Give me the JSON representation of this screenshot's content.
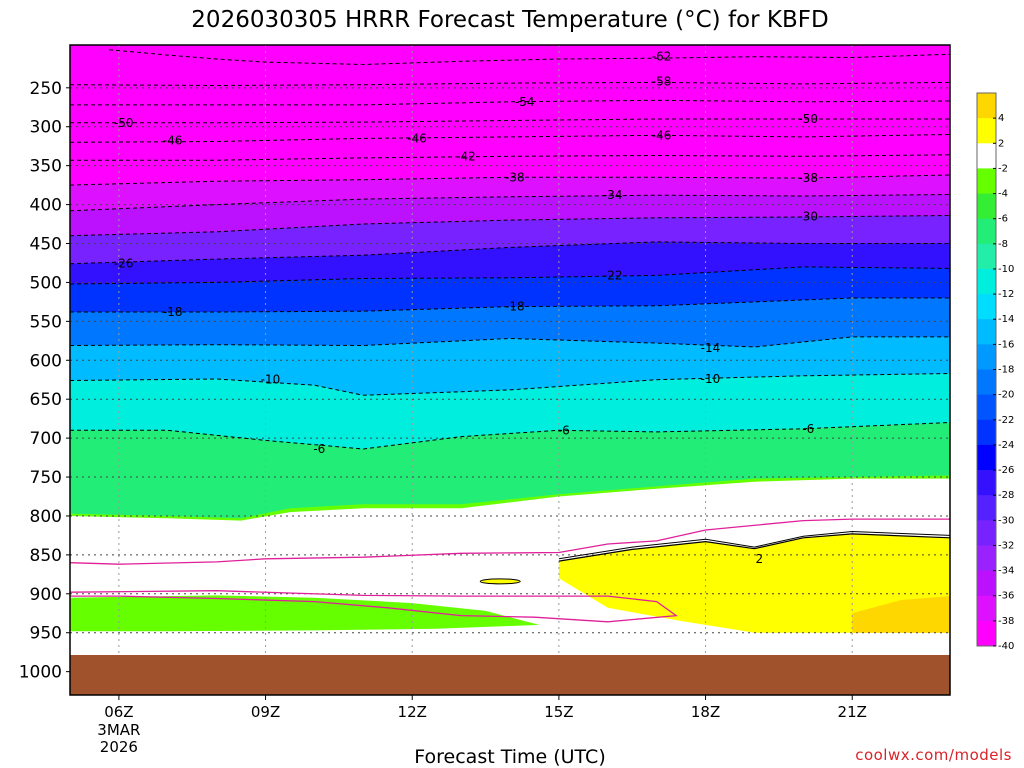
{
  "chart_data": {
    "type": "contour",
    "title": "2026030305 HRRR Forecast Temperature (°C) for KBFD",
    "xlabel": "Forecast Time (UTC)",
    "ylabel": "",
    "credit": "coolwx.com/models",
    "x_range_hours_utc": [
      5,
      23
    ],
    "y_range_hpa": [
      195,
      1030
    ],
    "y_axis": "pressure (hPa), inverted",
    "x_ticks": [
      {
        "hour": 6,
        "label": "06Z",
        "sub": [
          "3MAR",
          "2026"
        ]
      },
      {
        "hour": 9,
        "label": "09Z",
        "sub": []
      },
      {
        "hour": 12,
        "label": "12Z",
        "sub": []
      },
      {
        "hour": 15,
        "label": "15Z",
        "sub": []
      },
      {
        "hour": 18,
        "label": "18Z",
        "sub": []
      },
      {
        "hour": 21,
        "label": "21Z",
        "sub": []
      }
    ],
    "y_ticks": [
      {
        "value": 250,
        "label": "250"
      },
      {
        "value": 300,
        "label": "300"
      },
      {
        "value": 350,
        "label": "350"
      },
      {
        "value": 400,
        "label": "400"
      },
      {
        "value": 450,
        "label": "450"
      },
      {
        "value": 500,
        "label": "500"
      },
      {
        "value": 550,
        "label": "550"
      },
      {
        "value": 600,
        "label": "600"
      },
      {
        "value": 650,
        "label": "650"
      },
      {
        "value": 700,
        "label": "700"
      },
      {
        "value": 750,
        "label": "750"
      },
      {
        "value": 800,
        "label": "800"
      },
      {
        "value": 850,
        "label": "850"
      },
      {
        "value": 900,
        "label": "900"
      },
      {
        "value": 950,
        "label": "950"
      },
      {
        "value": 1000,
        "label": "1000"
      }
    ],
    "ground_level_hpa": 950,
    "ground_color": "#a0522d",
    "colorbar": {
      "labels": [
        "4",
        "2",
        "-2",
        "-4",
        "-6",
        "-8",
        "-10",
        "-12",
        "-14",
        "-16",
        "-18",
        "-20",
        "-22",
        "-24",
        "-26",
        "-28",
        "-30",
        "-32",
        "-34",
        "-36",
        "-38",
        "-40"
      ],
      "bins": [
        {
          "label": "> 4",
          "color": "#ffd700"
        },
        {
          "label": "2 to 4",
          "color": "#ffff00"
        },
        {
          "label": "-2 to 2",
          "color": "#ffffff"
        },
        {
          "label": "-4 to -2",
          "color": "#66ff00"
        },
        {
          "label": "-6 to -4",
          "color": "#33ee33"
        },
        {
          "label": "-8 to -6",
          "color": "#22ee77"
        },
        {
          "label": "-10 to -8",
          "color": "#22eeaa"
        },
        {
          "label": "-12 to -10",
          "color": "#00eedd"
        },
        {
          "label": "-14 to -12",
          "color": "#00ddff"
        },
        {
          "label": "-16 to -14",
          "color": "#00bbff"
        },
        {
          "label": "-18 to -16",
          "color": "#0099ff"
        },
        {
          "label": "-20 to -18",
          "color": "#0077ff"
        },
        {
          "label": "-22 to -20",
          "color": "#0055ff"
        },
        {
          "label": "-24 to -22",
          "color": "#0033ff"
        },
        {
          "label": "-26 to -24",
          "color": "#0000ff"
        },
        {
          "label": "-28 to -26",
          "color": "#3311ff"
        },
        {
          "label": "-30 to -28",
          "color": "#5522ff"
        },
        {
          "label": "-32 to -30",
          "color": "#7722ff"
        },
        {
          "label": "-34 to -32",
          "color": "#9922ff"
        },
        {
          "label": "-36 to -34",
          "color": "#bb11ff"
        },
        {
          "label": "-38 to -36",
          "color": "#dd11ff"
        },
        {
          "label": "< -40",
          "color": "#ff00ff"
        }
      ]
    },
    "isotherms": [
      {
        "label": "-62",
        "value": -62,
        "label_at": [
          {
            "hour": 17.1,
            "hpa": 210
          }
        ],
        "hpa_pts": [
          [
            5.8,
            201
          ],
          [
            7,
            208
          ],
          [
            8,
            213
          ],
          [
            9,
            217
          ],
          [
            11,
            220
          ],
          [
            13,
            216
          ],
          [
            15,
            213
          ],
          [
            17,
            212
          ],
          [
            19,
            210
          ],
          [
            21,
            211
          ],
          [
            23,
            207
          ]
        ]
      },
      {
        "label": "-58",
        "value": -58,
        "label_at": [
          {
            "hour": 17.1,
            "hpa": 242
          }
        ],
        "hpa_pts": [
          [
            5,
            246
          ],
          [
            8,
            247
          ],
          [
            11,
            246
          ],
          [
            14,
            244
          ],
          [
            17,
            243
          ],
          [
            20,
            245
          ],
          [
            23,
            243
          ]
        ]
      },
      {
        "label": "-54",
        "value": -54,
        "label_at": [
          {
            "hour": 14.3,
            "hpa": 268
          }
        ],
        "hpa_pts": [
          [
            5,
            272
          ],
          [
            8,
            272
          ],
          [
            11,
            272
          ],
          [
            14,
            268
          ],
          [
            17,
            266
          ],
          [
            20,
            268
          ],
          [
            23,
            267
          ]
        ]
      },
      {
        "label": "-50",
        "value": -50,
        "label_at": [
          {
            "hour": 6.1,
            "hpa": 295
          },
          {
            "hour": 20.1,
            "hpa": 290
          }
        ],
        "hpa_pts": [
          [
            5,
            295
          ],
          [
            8,
            295
          ],
          [
            11,
            294
          ],
          [
            14,
            292
          ],
          [
            17,
            290
          ],
          [
            20,
            290
          ],
          [
            23,
            290
          ]
        ]
      },
      {
        "label": "-46",
        "value": -46,
        "label_at": [
          {
            "hour": 7.1,
            "hpa": 318
          },
          {
            "hour": 12.1,
            "hpa": 315
          },
          {
            "hour": 17.1,
            "hpa": 311
          }
        ],
        "hpa_pts": [
          [
            5,
            320
          ],
          [
            8,
            319
          ],
          [
            11,
            315
          ],
          [
            14,
            313
          ],
          [
            17,
            311
          ],
          [
            20,
            313
          ],
          [
            23,
            310
          ]
        ]
      },
      {
        "label": "-42",
        "value": -42,
        "label_at": [
          {
            "hour": 13.1,
            "hpa": 338
          }
        ],
        "hpa_pts": [
          [
            5,
            343
          ],
          [
            8,
            343
          ],
          [
            11,
            340
          ],
          [
            14,
            338
          ],
          [
            17,
            337
          ],
          [
            20,
            338
          ],
          [
            23,
            336
          ]
        ]
      },
      {
        "label": "-38",
        "value": -38,
        "label_at": [
          {
            "hour": 14.1,
            "hpa": 365
          },
          {
            "hour": 20.1,
            "hpa": 366
          }
        ],
        "hpa_pts": [
          [
            5,
            375
          ],
          [
            8,
            370
          ],
          [
            11,
            368
          ],
          [
            14,
            365
          ],
          [
            17,
            365
          ],
          [
            20,
            366
          ],
          [
            23,
            362
          ]
        ]
      },
      {
        "label": "-34",
        "value": -34,
        "label_at": [
          {
            "hour": 16.1,
            "hpa": 388
          }
        ],
        "hpa_pts": [
          [
            5,
            408
          ],
          [
            8,
            400
          ],
          [
            11,
            393
          ],
          [
            14,
            390
          ],
          [
            17,
            388
          ],
          [
            20,
            389
          ],
          [
            23,
            387
          ]
        ]
      },
      {
        "label": "-30",
        "value": -30,
        "label_at": [
          {
            "hour": 20.1,
            "hpa": 415
          }
        ],
        "hpa_pts": [
          [
            5,
            440
          ],
          [
            8,
            435
          ],
          [
            11,
            425
          ],
          [
            14,
            420
          ],
          [
            17,
            417
          ],
          [
            20,
            416
          ],
          [
            23,
            414
          ]
        ]
      },
      {
        "label": "-26",
        "value": -26,
        "label_at": [
          {
            "hour": 6.1,
            "hpa": 476
          }
        ],
        "hpa_pts": [
          [
            5,
            476
          ],
          [
            8,
            470
          ],
          [
            11,
            465
          ],
          [
            14,
            455
          ],
          [
            17,
            448
          ],
          [
            20,
            450
          ],
          [
            23,
            450
          ]
        ]
      },
      {
        "label": "-22",
        "value": -22,
        "label_at": [
          {
            "hour": 16.1,
            "hpa": 491
          }
        ],
        "hpa_pts": [
          [
            5,
            502
          ],
          [
            8,
            500
          ],
          [
            11,
            495
          ],
          [
            14,
            494
          ],
          [
            17,
            491
          ],
          [
            20,
            480
          ],
          [
            23,
            482
          ]
        ]
      },
      {
        "label": "-18",
        "value": -18,
        "label_at": [
          {
            "hour": 7.1,
            "hpa": 538
          },
          {
            "hour": 14.1,
            "hpa": 531
          }
        ],
        "hpa_pts": [
          [
            5,
            538
          ],
          [
            8,
            538
          ],
          [
            11,
            537
          ],
          [
            14,
            531
          ],
          [
            17,
            530
          ],
          [
            19,
            525
          ],
          [
            21,
            520
          ],
          [
            23,
            520
          ]
        ]
      },
      {
        "label": "-14",
        "value": -14,
        "label_at": [
          {
            "hour": 18.1,
            "hpa": 584
          }
        ],
        "hpa_pts": [
          [
            5,
            581
          ],
          [
            8,
            580
          ],
          [
            11,
            581
          ],
          [
            14,
            572
          ],
          [
            17,
            578
          ],
          [
            19,
            583
          ],
          [
            21,
            570
          ],
          [
            23,
            570
          ]
        ]
      },
      {
        "label": "-10",
        "value": -10,
        "label_at": [
          {
            "hour": 9.1,
            "hpa": 625
          },
          {
            "hour": 18.1,
            "hpa": 624
          }
        ],
        "hpa_pts": [
          [
            5,
            626
          ],
          [
            8,
            624
          ],
          [
            10,
            632
          ],
          [
            11,
            645
          ],
          [
            14,
            638
          ],
          [
            17,
            625
          ],
          [
            20,
            620
          ],
          [
            23,
            617
          ]
        ]
      },
      {
        "label": "-6",
        "value": -6,
        "label_at": [
          {
            "hour": 10.1,
            "hpa": 714
          },
          {
            "hour": 15.1,
            "hpa": 690
          },
          {
            "hour": 20.1,
            "hpa": 688
          }
        ],
        "hpa_pts": [
          [
            5,
            690
          ],
          [
            7,
            690
          ],
          [
            9,
            703
          ],
          [
            11,
            714
          ],
          [
            13,
            698
          ],
          [
            15,
            690
          ],
          [
            17,
            692
          ],
          [
            20,
            688
          ],
          [
            23,
            680
          ]
        ]
      },
      {
        "label": "-2",
        "value": -2,
        "label_at": [],
        "hpa_pts": [
          [
            5,
            797
          ],
          [
            7,
            800
          ],
          [
            8.5,
            803
          ],
          [
            9.5,
            790
          ],
          [
            11,
            785
          ],
          [
            13,
            785
          ],
          [
            15,
            772
          ],
          [
            17,
            762
          ],
          [
            19,
            752
          ],
          [
            21,
            750
          ],
          [
            23,
            748
          ]
        ]
      },
      {
        "label": "2",
        "value": 2,
        "label_at": [
          {
            "hour": 19.1,
            "hpa": 855
          }
        ],
        "hpa_pts": [
          [
            15,
            855
          ],
          [
            16.5,
            840
          ],
          [
            18,
            830
          ],
          [
            19,
            840
          ],
          [
            20,
            826
          ],
          [
            21,
            820
          ],
          [
            23,
            825
          ]
        ]
      }
    ]
  }
}
